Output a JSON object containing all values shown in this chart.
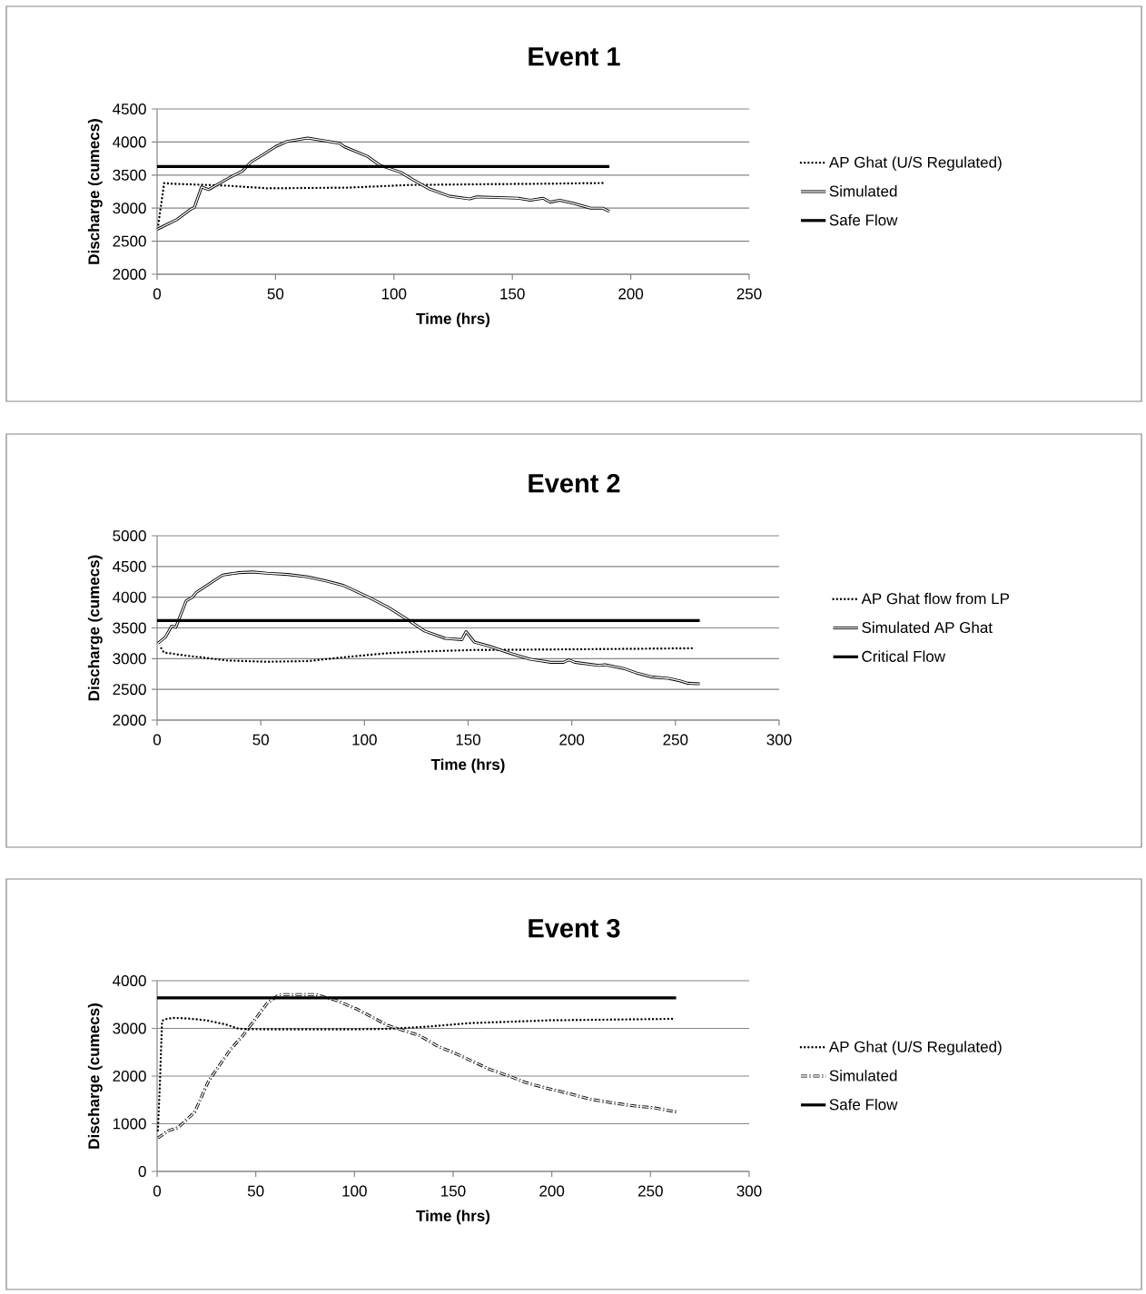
{
  "chart_data": [
    {
      "type": "line",
      "title": "Event 1",
      "xlabel": "Time (hrs)",
      "ylabel": "Discharge (cumecs)",
      "xlim": [
        0,
        250
      ],
      "ylim": [
        2000,
        4500
      ],
      "xticks": [
        0,
        50,
        100,
        150,
        200,
        250
      ],
      "yticks": [
        2000,
        2500,
        3000,
        3500,
        4000,
        4500
      ],
      "grid": "y",
      "legend": "right",
      "series": [
        {
          "name": "AP Ghat (U/S Regulated)",
          "color": "#000000",
          "line_style": "dotted",
          "x": [
            0.5,
            3,
            5.5,
            29.4,
            46.5,
            80.7,
            106,
            132,
            166,
            189
          ],
          "values": [
            2750,
            3380,
            3370,
            3340,
            3300,
            3310,
            3350,
            3360,
            3370,
            3380
          ]
        },
        {
          "name": "Simulated",
          "color": "#000000",
          "line_style": "solid",
          "x": [
            0,
            8.5,
            14,
            15.7,
            18.8,
            21.7,
            31,
            36,
            39.7,
            44.8,
            50,
            55,
            63.6,
            70.5,
            77,
            79,
            89,
            94,
            103,
            108,
            115,
            123.5,
            132,
            135,
            152.5,
            157.6,
            163,
            166,
            170,
            176,
            183,
            188,
            191
          ],
          "values": [
            2680,
            2830,
            2980,
            3010,
            3320,
            3280,
            3470,
            3560,
            3700,
            3810,
            3930,
            4010,
            4060,
            4020,
            3980,
            3930,
            3780,
            3650,
            3540,
            3430,
            3290,
            3180,
            3140,
            3170,
            3150,
            3120,
            3150,
            3090,
            3120,
            3070,
            3000,
            3000,
            2950
          ]
        },
        {
          "name": "Safe Flow",
          "color": "#000000",
          "line_style": "solid",
          "x": [
            0,
            191
          ],
          "values": [
            3630,
            3630
          ]
        }
      ]
    },
    {
      "type": "line",
      "title": "Event 2",
      "xlabel": "Time (hrs)",
      "ylabel": "Discharge (cumecs)",
      "xlim": [
        0,
        300
      ],
      "ylim": [
        2000,
        5000
      ],
      "xticks": [
        0,
        50,
        100,
        150,
        200,
        250,
        300
      ],
      "yticks": [
        2000,
        2500,
        3000,
        3500,
        4000,
        4500,
        5000
      ],
      "grid": "y",
      "legend": "right",
      "series": [
        {
          "name": "AP Ghat flow from LP",
          "color": "#000000",
          "line_style": "dotted",
          "x": [
            2,
            3.3,
            14,
            24,
            33.6,
            53,
            72.6,
            92,
            111.7,
            131,
            151,
            190,
            229,
            259
          ],
          "values": [
            3170,
            3100,
            3050,
            3010,
            2970,
            2950,
            2960,
            3030,
            3090,
            3120,
            3140,
            3150,
            3160,
            3170
          ]
        },
        {
          "name": "Simulated AP Ghat",
          "color": "#000000",
          "line_style": "solid",
          "x": [
            0.4,
            4,
            7,
            9,
            14,
            17,
            19,
            24.8,
            31.6,
            39.5,
            46,
            53,
            63,
            72.6,
            82,
            90,
            102,
            111.7,
            121.5,
            129,
            139,
            147,
            149,
            153,
            160.5,
            170,
            180,
            190,
            196,
            198.6,
            201.5,
            213,
            216,
            225,
            231,
            239,
            246.5,
            252,
            256,
            261.7
          ],
          "values": [
            3250,
            3350,
            3530,
            3510,
            3940,
            4000,
            4080,
            4210,
            4360,
            4400,
            4410,
            4390,
            4370,
            4330,
            4260,
            4190,
            4000,
            3830,
            3620,
            3450,
            3330,
            3310,
            3440,
            3270,
            3200,
            3090,
            2990,
            2940,
            2940,
            2980,
            2940,
            2890,
            2900,
            2840,
            2770,
            2700,
            2680,
            2640,
            2600,
            2590
          ]
        },
        {
          "name": "Critical Flow",
          "color": "#000000",
          "line_style": "solid",
          "x": [
            0,
            261.7
          ],
          "values": [
            3620,
            3620
          ]
        }
      ]
    },
    {
      "type": "line",
      "title": "Event 3",
      "xlabel": "Time (hrs)",
      "ylabel": "Discharge (cumecs)",
      "xlim": [
        0,
        300
      ],
      "ylim": [
        0,
        4000
      ],
      "xticks": [
        0,
        50,
        100,
        150,
        200,
        250,
        300
      ],
      "yticks": [
        0,
        1000,
        2000,
        3000,
        4000
      ],
      "grid": "y",
      "legend": "right",
      "series": [
        {
          "name": "AP Ghat (U/S Regulated)",
          "color": "#000000",
          "line_style": "dotted",
          "x": [
            0.4,
            1.4,
            2.5,
            3.5,
            8.6,
            14.8,
            25,
            35,
            41.4,
            55.8,
            97,
            117,
            138,
            158,
            179,
            199,
            220,
            261
          ],
          "values": [
            860,
            1810,
            3150,
            3190,
            3220,
            3210,
            3170,
            3080,
            2990,
            2980,
            2980,
            2990,
            3040,
            3110,
            3140,
            3170,
            3180,
            3200
          ]
        },
        {
          "name": "Simulated",
          "color": "#000000",
          "line_style": "dashed",
          "x": [
            0.4,
            5.5,
            10.7,
            19,
            26,
            37,
            43.5,
            56,
            62,
            72,
            80.4,
            90.6,
            101,
            117,
            133,
            142,
            152,
            168.6,
            179,
            187,
            199,
            208,
            220,
            232,
            242.5,
            251,
            263
          ],
          "values": [
            700,
            850,
            920,
            1240,
            1890,
            2550,
            2850,
            3540,
            3710,
            3710,
            3710,
            3590,
            3410,
            3060,
            2850,
            2630,
            2460,
            2140,
            1990,
            1860,
            1730,
            1640,
            1510,
            1430,
            1370,
            1340,
            1250
          ]
        },
        {
          "name": "Safe Flow",
          "color": "#000000",
          "line_style": "solid",
          "x": [
            0,
            263
          ],
          "values": [
            3640,
            3640
          ]
        }
      ]
    }
  ]
}
